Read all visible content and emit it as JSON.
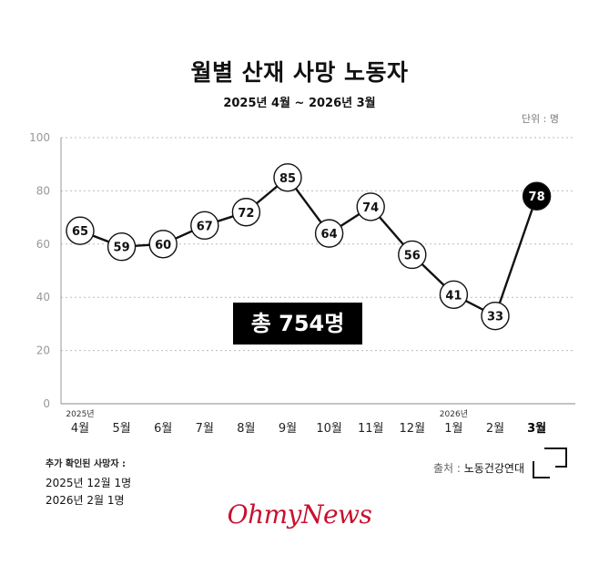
{
  "title": "월별 산재 사망 노동자",
  "subtitle": "2025년 4월 ~ 2026년 3월",
  "unit_label": "단위 : 명",
  "total_label": "총 754명",
  "note": {
    "heading": "추가 확인된 사망자 :",
    "lines": [
      "2025년 12월 1명",
      "2026년 2월 1명"
    ]
  },
  "source": {
    "label": "출처 :",
    "name": "노동건강연대"
  },
  "brand": "OhmyNews",
  "colors": {
    "line": "#111111",
    "marker_fill": "#ffffff",
    "highlight": "#000000",
    "grid": "#bbbbbb",
    "brand": "#c8102e"
  },
  "chart_data": {
    "type": "line",
    "title": "월별 산재 사망 노동자",
    "subtitle": "2025년 4월 ~ 2026년 3월",
    "categories": [
      "4월",
      "5월",
      "6월",
      "7월",
      "8월",
      "9월",
      "10월",
      "11월",
      "12월",
      "1월",
      "2월",
      "3월"
    ],
    "year_markers": [
      {
        "index": 0,
        "label": "2025년"
      },
      {
        "index": 9,
        "label": "2026년"
      }
    ],
    "values": [
      65,
      59,
      60,
      67,
      72,
      85,
      64,
      74,
      56,
      41,
      33,
      78
    ],
    "highlight_index": 11,
    "yticks": [
      0,
      20,
      40,
      60,
      80,
      100
    ],
    "ylim": [
      0,
      100
    ],
    "ylabel": "",
    "xlabel": "",
    "grid": true
  }
}
